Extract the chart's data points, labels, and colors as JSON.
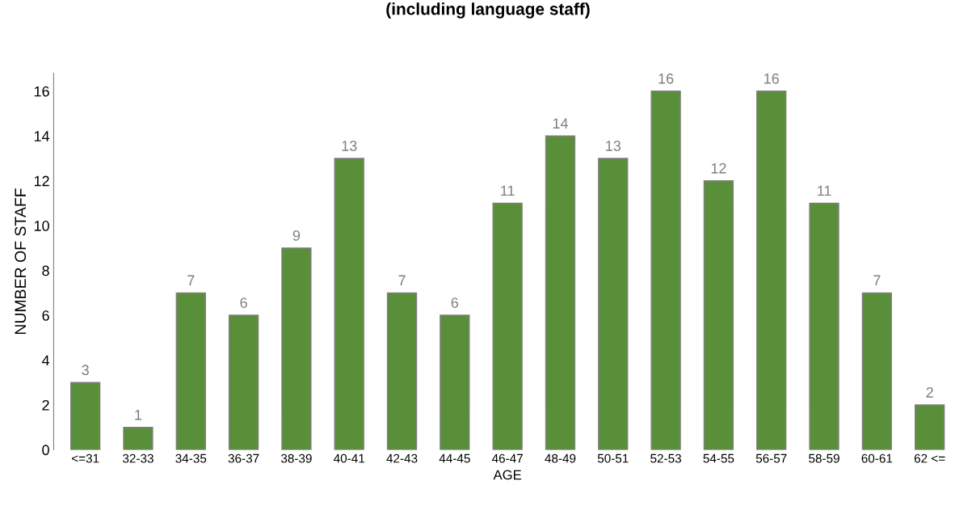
{
  "chart_data": {
    "type": "bar",
    "title": "(including language staff)",
    "xlabel": "AGE",
    "ylabel": "NUMBER OF STAFF",
    "categories": [
      "<=31",
      "32-33",
      "34-35",
      "36-37",
      "38-39",
      "40-41",
      "42-43",
      "44-45",
      "46-47",
      "48-49",
      "50-51",
      "52-53",
      "54-55",
      "56-57",
      "58-59",
      "60-61",
      "62 <="
    ],
    "values": [
      3,
      1,
      7,
      6,
      9,
      13,
      7,
      6,
      11,
      14,
      13,
      16,
      12,
      16,
      11,
      7,
      2
    ],
    "color": "#5a8f3a",
    "ylim": [
      0,
      16.8
    ],
    "yticks": [
      0,
      2,
      4,
      6,
      8,
      10,
      12,
      14,
      16
    ],
    "data_labels": true,
    "grid": false,
    "legend": false
  }
}
